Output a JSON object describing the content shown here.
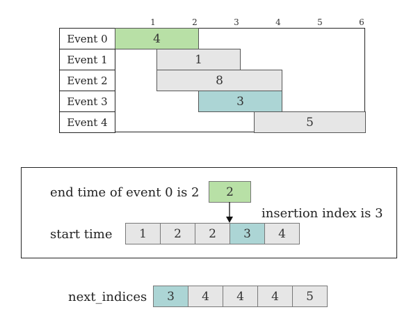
{
  "colors": {
    "green": "#b8e0a6",
    "teal": "#acd5d5",
    "gray": "#e6e6e6"
  },
  "timeline": {
    "ticks": [
      "1",
      "2",
      "3",
      "4",
      "5",
      "6"
    ],
    "events": [
      {
        "label": "Event 0",
        "start": 0,
        "end": 2,
        "value": "4",
        "color": "green"
      },
      {
        "label": "Event 1",
        "start": 1,
        "end": 3,
        "value": "1",
        "color": "gray"
      },
      {
        "label": "Event 2",
        "start": 1,
        "end": 4,
        "value": "8",
        "color": "gray"
      },
      {
        "label": "Event 3",
        "start": 2,
        "end": 4,
        "value": "3",
        "color": "teal"
      },
      {
        "label": "Event 4",
        "start": 3.333,
        "end": 6,
        "value": "5",
        "color": "gray"
      }
    ]
  },
  "search": {
    "end_time_label": "end time of event 0 is 2",
    "end_time_value": "2",
    "insertion_label": "insertion index is 3",
    "start_time_label": "start time",
    "start_times": [
      "1",
      "2",
      "2",
      "3",
      "4"
    ],
    "highlight_index": 3
  },
  "next_indices": {
    "label": "next_indices",
    "values": [
      "3",
      "4",
      "4",
      "4",
      "5"
    ],
    "highlight_index": 0
  }
}
